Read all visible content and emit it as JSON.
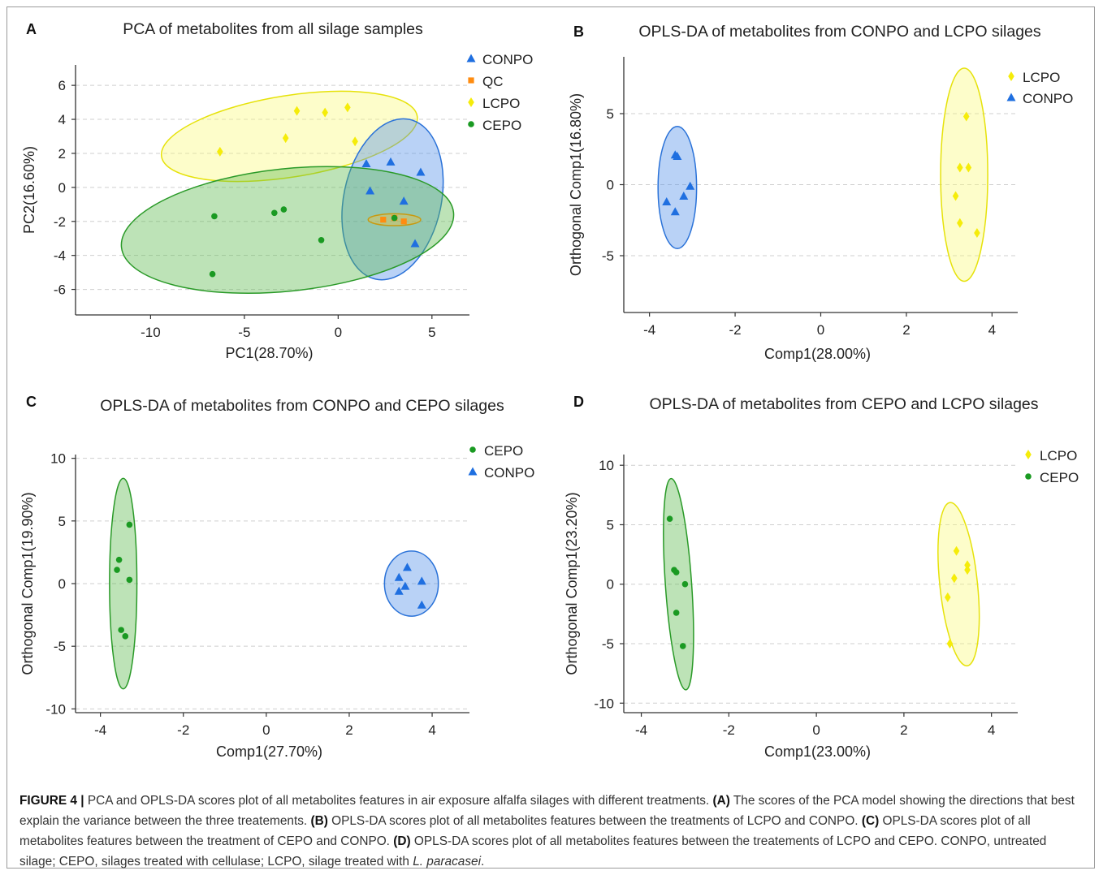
{
  "colors": {
    "CONPO": "#1f6fe0",
    "QC": "#ff8c10",
    "LCPO": "#f5ec0a",
    "CEPO": "#1a9a22",
    "ellipse_fill": {
      "CONPO": "#4f8fe8",
      "QC": "#f0c040",
      "LCPO": "#fafa7a",
      "CEPO": "#5ab84a"
    },
    "ellipse_stroke": {
      "CONPO": "#2a72d8",
      "QC": "#c89a10",
      "LCPO": "#e6e20a",
      "CEPO": "#2a9a28"
    },
    "grid": "#cfcfcf",
    "axis": "#333333"
  },
  "chart_data": [
    {
      "panel_letter": "A",
      "type": "scatter",
      "title": "PCA of metabolites from all silage samples",
      "xlabel": "PC1(28.70%)",
      "ylabel": "PC2(16.60%)",
      "xlim": [
        -14,
        7
      ],
      "ylim": [
        -7.5,
        7.2
      ],
      "xticks": [
        -10,
        -5,
        0,
        5
      ],
      "yticks": [
        6,
        4,
        2,
        0,
        -2,
        -4,
        -6
      ],
      "grid": "horizontal dashed",
      "legend_position": "top-right",
      "legend": [
        "CONPO",
        "QC",
        "LCPO",
        "CEPO"
      ],
      "series": [
        {
          "name": "CONPO",
          "marker": "triangle",
          "points": [
            [
              1.5,
              1.4
            ],
            [
              2.8,
              1.5
            ],
            [
              4.4,
              0.9
            ],
            [
              1.7,
              -0.2
            ],
            [
              3.5,
              -0.8
            ],
            [
              4.1,
              -3.3
            ]
          ]
        },
        {
          "name": "QC",
          "marker": "square",
          "points": [
            [
              2.4,
              -1.9
            ],
            [
              3.0,
              -1.8
            ],
            [
              3.5,
              -2.0
            ]
          ]
        },
        {
          "name": "LCPO",
          "marker": "diamond",
          "points": [
            [
              -6.3,
              2.1
            ],
            [
              -2.2,
              4.5
            ],
            [
              -0.7,
              4.4
            ],
            [
              0.5,
              4.7
            ],
            [
              -2.8,
              2.9
            ],
            [
              0.9,
              2.7
            ]
          ]
        },
        {
          "name": "CEPO",
          "marker": "circle",
          "points": [
            [
              -6.6,
              -1.7
            ],
            [
              -3.4,
              -1.5
            ],
            [
              -2.9,
              -1.3
            ],
            [
              -0.9,
              -3.1
            ],
            [
              -6.7,
              -5.1
            ],
            [
              3.0,
              -1.8
            ]
          ]
        }
      ],
      "ellipses": [
        {
          "group": "LCPO",
          "cx": -2.6,
          "cy": 3.0,
          "rx": 6.9,
          "ry": 2.4,
          "angle": 9
        },
        {
          "group": "CONPO",
          "cx": 2.9,
          "cy": -0.7,
          "rx": 2.6,
          "ry": 4.8,
          "angle": -12
        },
        {
          "group": "CEPO",
          "cx": -2.7,
          "cy": -2.5,
          "rx": 8.9,
          "ry": 3.6,
          "angle": 6
        },
        {
          "group": "QC",
          "cx": 3.0,
          "cy": -1.9,
          "rx": 1.4,
          "ry": 0.35,
          "angle": 0
        }
      ]
    },
    {
      "panel_letter": "B",
      "type": "scatter",
      "title": "OPLS-DA of metabolites from CONPO and LCPO silages",
      "xlabel": "Comp1(28.00%)",
      "ylabel": "Orthogonal Comp1(16.80%)",
      "xlim": [
        -4.6,
        4.6
      ],
      "ylim": [
        -9,
        9
      ],
      "xticks": [
        -4,
        -2,
        0,
        2,
        4
      ],
      "yticks": [
        5,
        0,
        -5
      ],
      "grid": "horizontal dashed",
      "legend_position": "top-right",
      "legend": [
        "LCPO",
        "CONPO"
      ],
      "series": [
        {
          "name": "CONPO",
          "marker": "triangle",
          "points": [
            [
              -3.4,
              2.1
            ],
            [
              -3.35,
              2.0
            ],
            [
              -3.6,
              -1.2
            ],
            [
              -3.2,
              -0.8
            ],
            [
              -3.05,
              -0.1
            ],
            [
              -3.4,
              -1.9
            ]
          ]
        },
        {
          "name": "LCPO",
          "marker": "diamond",
          "points": [
            [
              3.4,
              4.8
            ],
            [
              3.25,
              1.2
            ],
            [
              3.45,
              1.2
            ],
            [
              3.15,
              -0.8
            ],
            [
              3.25,
              -2.7
            ],
            [
              3.65,
              -3.4
            ]
          ]
        }
      ],
      "ellipses": [
        {
          "group": "CONPO",
          "cx": -3.35,
          "cy": -0.2,
          "rx": 0.45,
          "ry": 4.3,
          "angle": 0
        },
        {
          "group": "LCPO",
          "cx": 3.35,
          "cy": 0.7,
          "rx": 0.55,
          "ry": 7.5,
          "angle": 0
        }
      ]
    },
    {
      "panel_letter": "C",
      "type": "scatter",
      "title": "OPLS-DA of metabolites from CONPO and CEPO silages",
      "xlabel": "Comp1(27.70%)",
      "ylabel": "Orthogonal Comp1(19.90%)",
      "xlim": [
        -4.6,
        4.9
      ],
      "ylim": [
        -10.3,
        10.3
      ],
      "xticks": [
        -4,
        -2,
        0,
        2,
        4
      ],
      "yticks": [
        10,
        5,
        0,
        -5,
        -10
      ],
      "grid": "horizontal dashed",
      "legend_position": "top-right",
      "legend": [
        "CEPO",
        "CONPO"
      ],
      "series": [
        {
          "name": "CEPO",
          "marker": "circle",
          "points": [
            [
              -3.3,
              4.7
            ],
            [
              -3.55,
              1.9
            ],
            [
              -3.6,
              1.1
            ],
            [
              -3.3,
              0.3
            ],
            [
              -3.5,
              -3.7
            ],
            [
              -3.4,
              -4.2
            ]
          ]
        },
        {
          "name": "CONPO",
          "marker": "triangle",
          "points": [
            [
              3.4,
              1.3
            ],
            [
              3.2,
              0.5
            ],
            [
              3.75,
              0.2
            ],
            [
              3.35,
              -0.2
            ],
            [
              3.2,
              -0.6
            ],
            [
              3.75,
              -1.7
            ]
          ]
        }
      ],
      "ellipses": [
        {
          "group": "CEPO",
          "cx": -3.45,
          "cy": 0,
          "rx": 0.33,
          "ry": 8.4,
          "angle": 0
        },
        {
          "group": "CONPO",
          "cx": 3.5,
          "cy": 0,
          "rx": 0.65,
          "ry": 2.6,
          "angle": 0
        }
      ]
    },
    {
      "panel_letter": "D",
      "type": "scatter",
      "title": "OPLS-DA of metabolites from CEPO and LCPO silages",
      "xlabel": "Comp1(23.00%)",
      "ylabel": "Orthogonal Comp1(23.20%)",
      "xlim": [
        -4.4,
        4.6
      ],
      "ylim": [
        -10.8,
        10.9
      ],
      "xticks": [
        -4,
        -2,
        0,
        2,
        4
      ],
      "yticks": [
        10,
        5,
        0,
        -5,
        -10
      ],
      "grid": "horizontal dashed",
      "legend_position": "top-right",
      "legend": [
        "LCPO",
        "CEPO"
      ],
      "series": [
        {
          "name": "CEPO",
          "marker": "circle",
          "points": [
            [
              -3.35,
              5.5
            ],
            [
              -3.25,
              1.2
            ],
            [
              -3.2,
              1.0
            ],
            [
              -3.0,
              0.0
            ],
            [
              -3.2,
              -2.4
            ],
            [
              -3.05,
              -5.2
            ]
          ]
        },
        {
          "name": "LCPO",
          "marker": "diamond",
          "points": [
            [
              3.2,
              2.8
            ],
            [
              3.45,
              1.6
            ],
            [
              3.45,
              1.2
            ],
            [
              3.15,
              0.5
            ],
            [
              3.0,
              -1.1
            ],
            [
              3.05,
              -5.0
            ]
          ]
        }
      ],
      "ellipses": [
        {
          "group": "CEPO",
          "cx": -3.15,
          "cy": 0,
          "rx": 0.3,
          "ry": 8.9,
          "angle": 4
        },
        {
          "group": "LCPO",
          "cx": 3.25,
          "cy": 0,
          "rx": 0.43,
          "ry": 6.9,
          "angle": 6
        }
      ]
    }
  ],
  "caption": {
    "label": "FIGURE 4 |",
    "text_1": " PCA and OPLS-DA scores plot of all metabolites features in air exposure alfalfa silages with different treatments. ",
    "ref_a": "(A)",
    "text_a": " The scores of the PCA model showing the directions that best explain the variance between the three treatements. ",
    "ref_b": "(B)",
    "text_b": " OPLS-DA scores plot of all metabolites features between the treatments of LCPO and CONPO. ",
    "ref_c": "(C)",
    "text_c": " OPLS-DA scores plot of all metabolites features between the treatment of CEPO and CONPO. ",
    "ref_d": "(D)",
    "text_d": " OPLS-DA scores plot of all metabolites features between the treatements of LCPO and CEPO. CONPO, untreated silage; CEPO, silages treated with cellulase; LCPO, silage treated with ",
    "species": "L. paracasei",
    "text_end": "."
  }
}
